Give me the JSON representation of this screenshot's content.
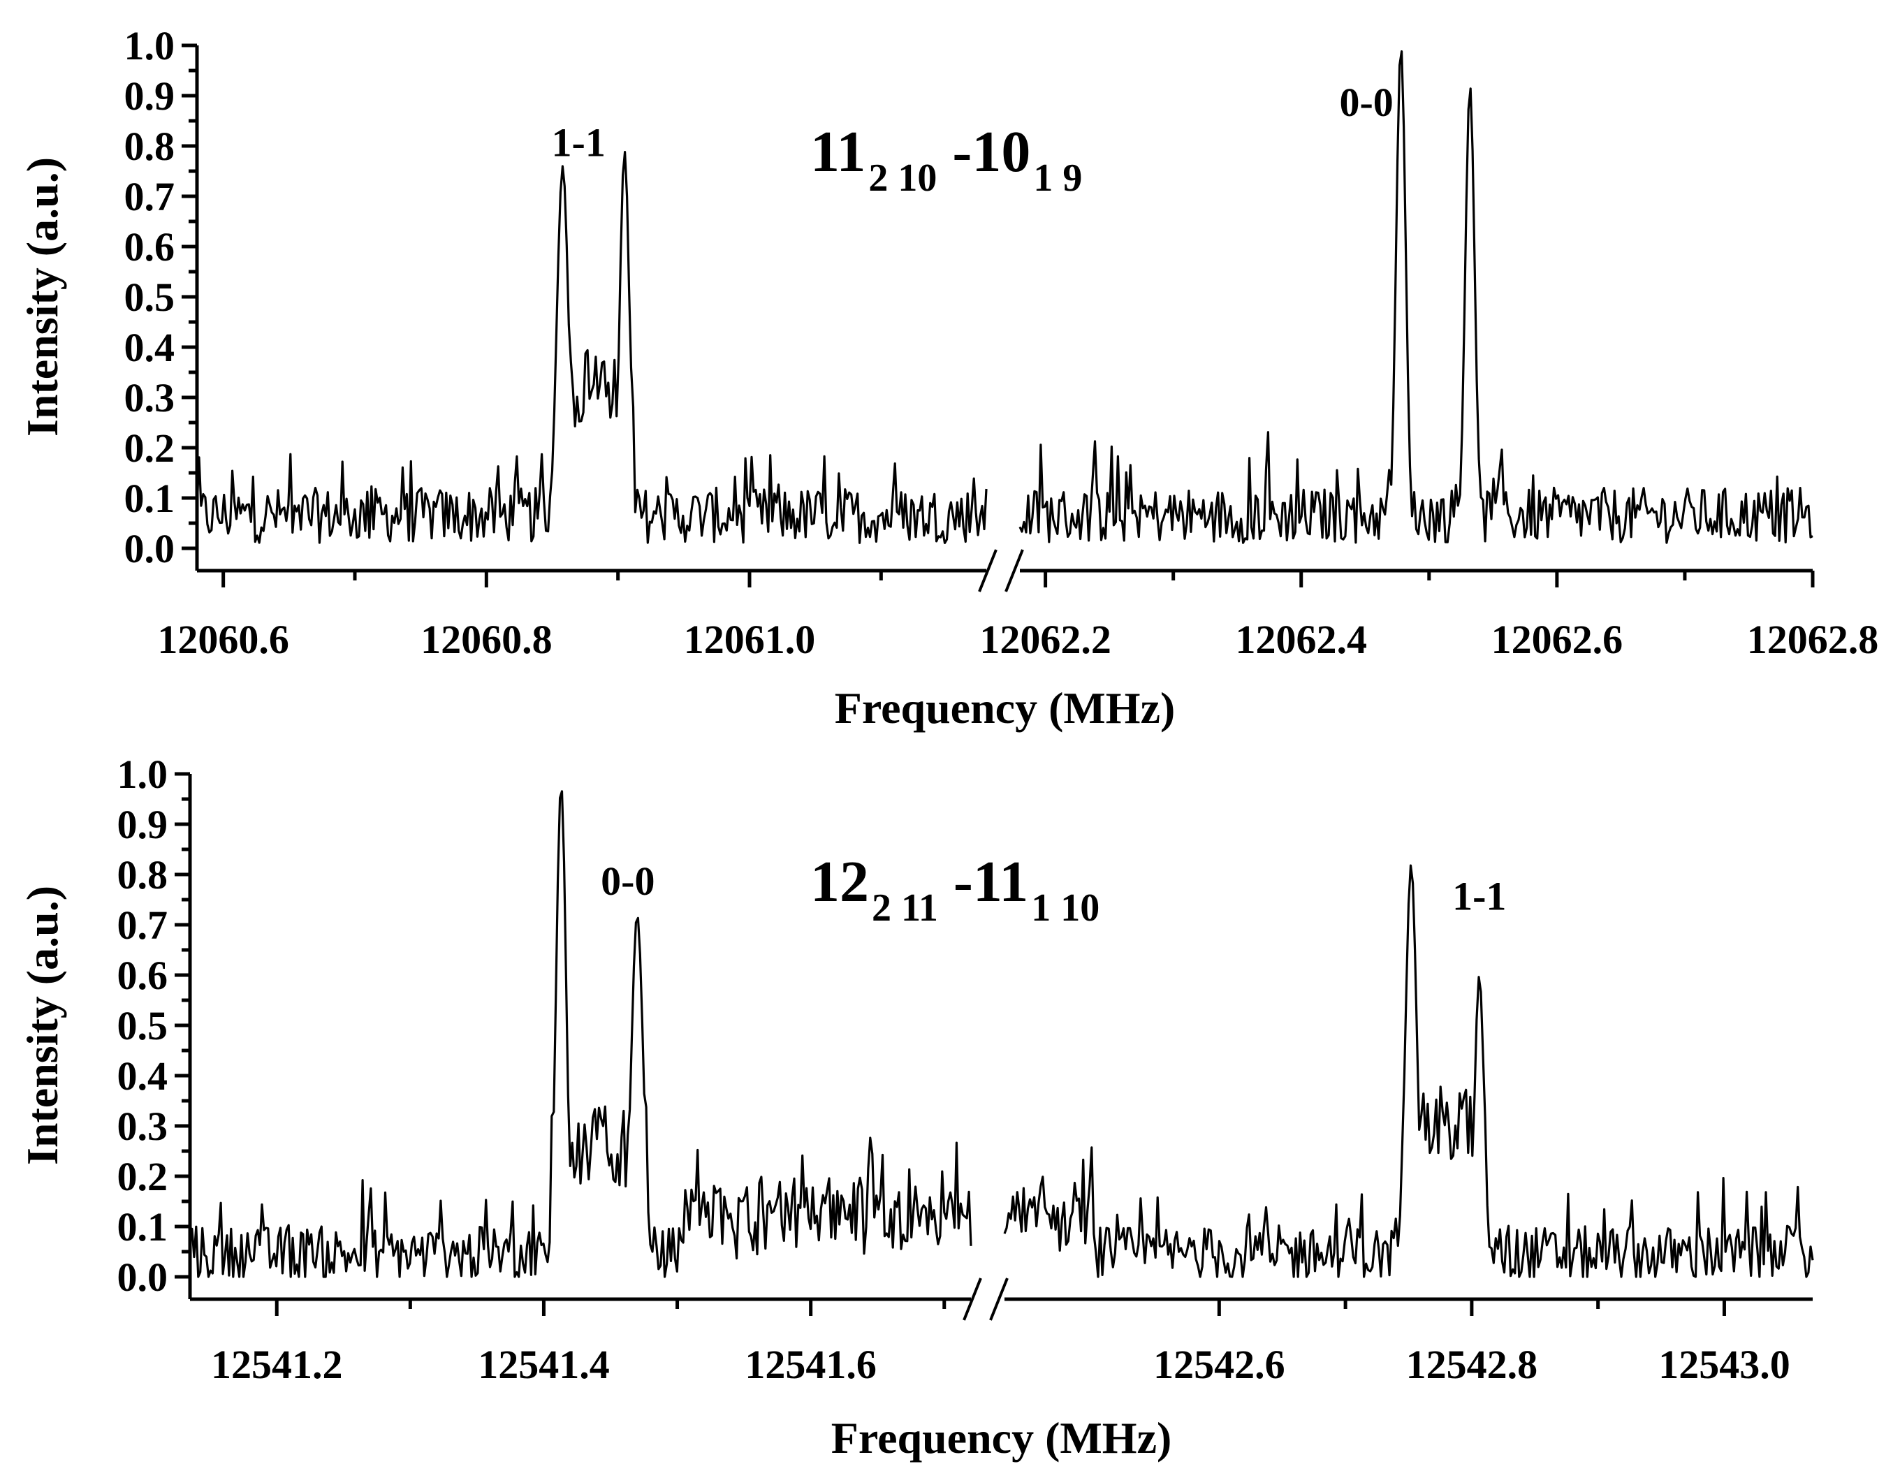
{
  "figure": {
    "chart_data": [
      {
        "type": "line",
        "title": "",
        "transition": {
          "upper": "11",
          "upper_sub": "2 10",
          "lower": "-10",
          "lower_sub": "1 9"
        },
        "xlabel": "Frequency (MHz)",
        "ylabel": "Intensity (a.u.)",
        "ylim": [
          0.0,
          1.0
        ],
        "yticks": [
          "0.0",
          "0.1",
          "0.2",
          "0.3",
          "0.4",
          "0.5",
          "0.6",
          "0.7",
          "0.8",
          "0.9",
          "1.0"
        ],
        "broken_x_axis": true,
        "segments": [
          {
            "xlim": [
              12060.58,
              12061.18
            ],
            "xticks": [
              "12060.6",
              "12060.8",
              "12061.0"
            ],
            "xtick_values": [
              12060.6,
              12060.8,
              12061.0
            ]
          },
          {
            "xlim": [
              12062.18,
              12062.8
            ],
            "xticks": [
              "12062.2",
              "12062.4",
              "12062.6",
              "12062.8"
            ],
            "xtick_values": [
              12062.2,
              12062.4,
              12062.6,
              12062.8
            ]
          }
        ],
        "peaks": [
          {
            "segment": 0,
            "x": 12060.858,
            "y": 0.76,
            "w": 0.006
          },
          {
            "segment": 0,
            "x": 12060.905,
            "y": 0.79,
            "w": 0.005
          },
          {
            "segment": 1,
            "x": 12062.478,
            "y": 1.0,
            "w": 0.005
          },
          {
            "segment": 1,
            "x": 12062.532,
            "y": 0.92,
            "w": 0.005
          }
        ],
        "plateaus": [
          {
            "segment": 0,
            "from": 12060.852,
            "to": 12060.912,
            "y": 0.32
          }
        ],
        "baseline": 0.06,
        "annotations": [
          {
            "text": "1-1",
            "x": 12060.87,
            "y": 0.78
          },
          {
            "text": "0-0",
            "x": 12062.451,
            "y": 0.86
          }
        ]
      },
      {
        "type": "line",
        "title": "",
        "transition": {
          "upper": "12",
          "upper_sub": "2 11",
          "lower": "-11",
          "lower_sub": "1 10"
        },
        "xlabel": "Frequency (MHz)",
        "ylabel": "Intensity (a.u.)",
        "ylim": [
          0.0,
          1.0
        ],
        "yticks": [
          "0.0",
          "0.1",
          "0.2",
          "0.3",
          "0.4",
          "0.5",
          "0.6",
          "0.7",
          "0.8",
          "0.9",
          "1.0"
        ],
        "broken_x_axis": true,
        "segments": [
          {
            "xlim": [
              12541.135,
              12541.72
            ],
            "xticks": [
              "12541.2",
              "12541.4",
              "12541.6"
            ],
            "xtick_values": [
              12541.2,
              12541.4,
              12541.6
            ]
          },
          {
            "xlim": [
              12542.43,
              12543.07
            ],
            "xticks": [
              "12542.6",
              "12542.8",
              "12543.0"
            ],
            "xtick_values": [
              12542.6,
              12542.8,
              12543.0
            ]
          }
        ],
        "peaks": [
          {
            "segment": 0,
            "x": 12541.413,
            "y": 0.98,
            "w": 0.005
          },
          {
            "segment": 0,
            "x": 12541.47,
            "y": 0.72,
            "w": 0.006
          },
          {
            "segment": 1,
            "x": 12542.752,
            "y": 0.82,
            "w": 0.006
          },
          {
            "segment": 1,
            "x": 12542.806,
            "y": 0.6,
            "w": 0.005
          }
        ],
        "plateaus": [
          {
            "segment": 0,
            "from": 12541.405,
            "to": 12541.478,
            "y": 0.26
          },
          {
            "segment": 1,
            "from": 12542.744,
            "to": 12542.812,
            "y": 0.3
          }
        ],
        "bumps": [
          {
            "segment": 0,
            "from": 12541.5,
            "to": 12541.72,
            "y": 0.1
          },
          {
            "segment": 1,
            "from": 12542.43,
            "to": 12542.5,
            "y": 0.1
          }
        ],
        "baseline": 0.04,
        "annotations": [
          {
            "text": "0-0",
            "x": 12541.463,
            "y": 0.76
          },
          {
            "text": "1-1",
            "x": 12542.806,
            "y": 0.73
          }
        ]
      }
    ]
  }
}
